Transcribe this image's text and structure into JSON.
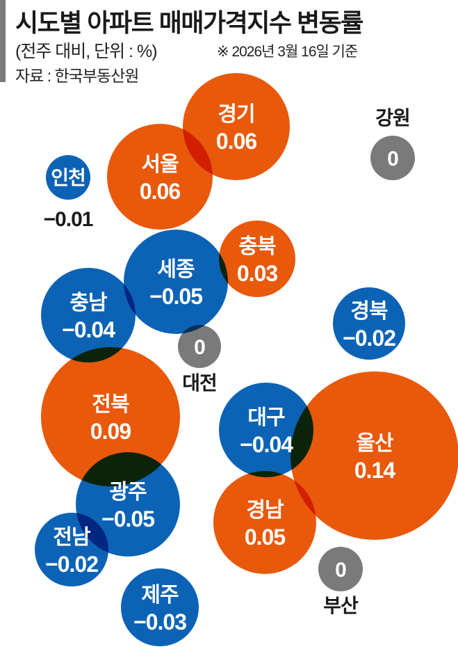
{
  "header": {
    "title": "시도별 아파트 매매가격지수 변동률",
    "subtitle": "(전주 대비, 단위 : %)",
    "note": "※ 2026년 3월 16일 기준",
    "source": "자료 : 한국부동산원"
  },
  "colors": {
    "positive": "#e8590c",
    "negative": "#0c63b5",
    "zero": "#7a7a7a",
    "accent_bar": "#7b7b7b"
  },
  "chart_data": {
    "type": "bubble",
    "unit": "%",
    "bubbles": [
      {
        "region": "경기",
        "label": "0.06",
        "value": 0.06
      },
      {
        "region": "서울",
        "label": "0.06",
        "value": 0.06
      },
      {
        "region": "인천",
        "label": "−0.01",
        "value": -0.01
      },
      {
        "region": "강원",
        "label": "0",
        "value": 0
      },
      {
        "region": "충북",
        "label": "0.03",
        "value": 0.03
      },
      {
        "region": "세종",
        "label": "−0.05",
        "value": -0.05
      },
      {
        "region": "충남",
        "label": "−0.04",
        "value": -0.04
      },
      {
        "region": "경북",
        "label": "−0.02",
        "value": -0.02
      },
      {
        "region": "대전",
        "label": "0",
        "value": 0
      },
      {
        "region": "전북",
        "label": "0.09",
        "value": 0.09
      },
      {
        "region": "대구",
        "label": "−0.04",
        "value": -0.04
      },
      {
        "region": "울산",
        "label": "0.14",
        "value": 0.14
      },
      {
        "region": "광주",
        "label": "−0.05",
        "value": -0.05
      },
      {
        "region": "경남",
        "label": "0.05",
        "value": 0.05
      },
      {
        "region": "전남",
        "label": "−0.02",
        "value": -0.02
      },
      {
        "region": "부산",
        "label": "0",
        "value": 0
      },
      {
        "region": "제주",
        "label": "−0.03",
        "value": -0.03
      }
    ]
  }
}
